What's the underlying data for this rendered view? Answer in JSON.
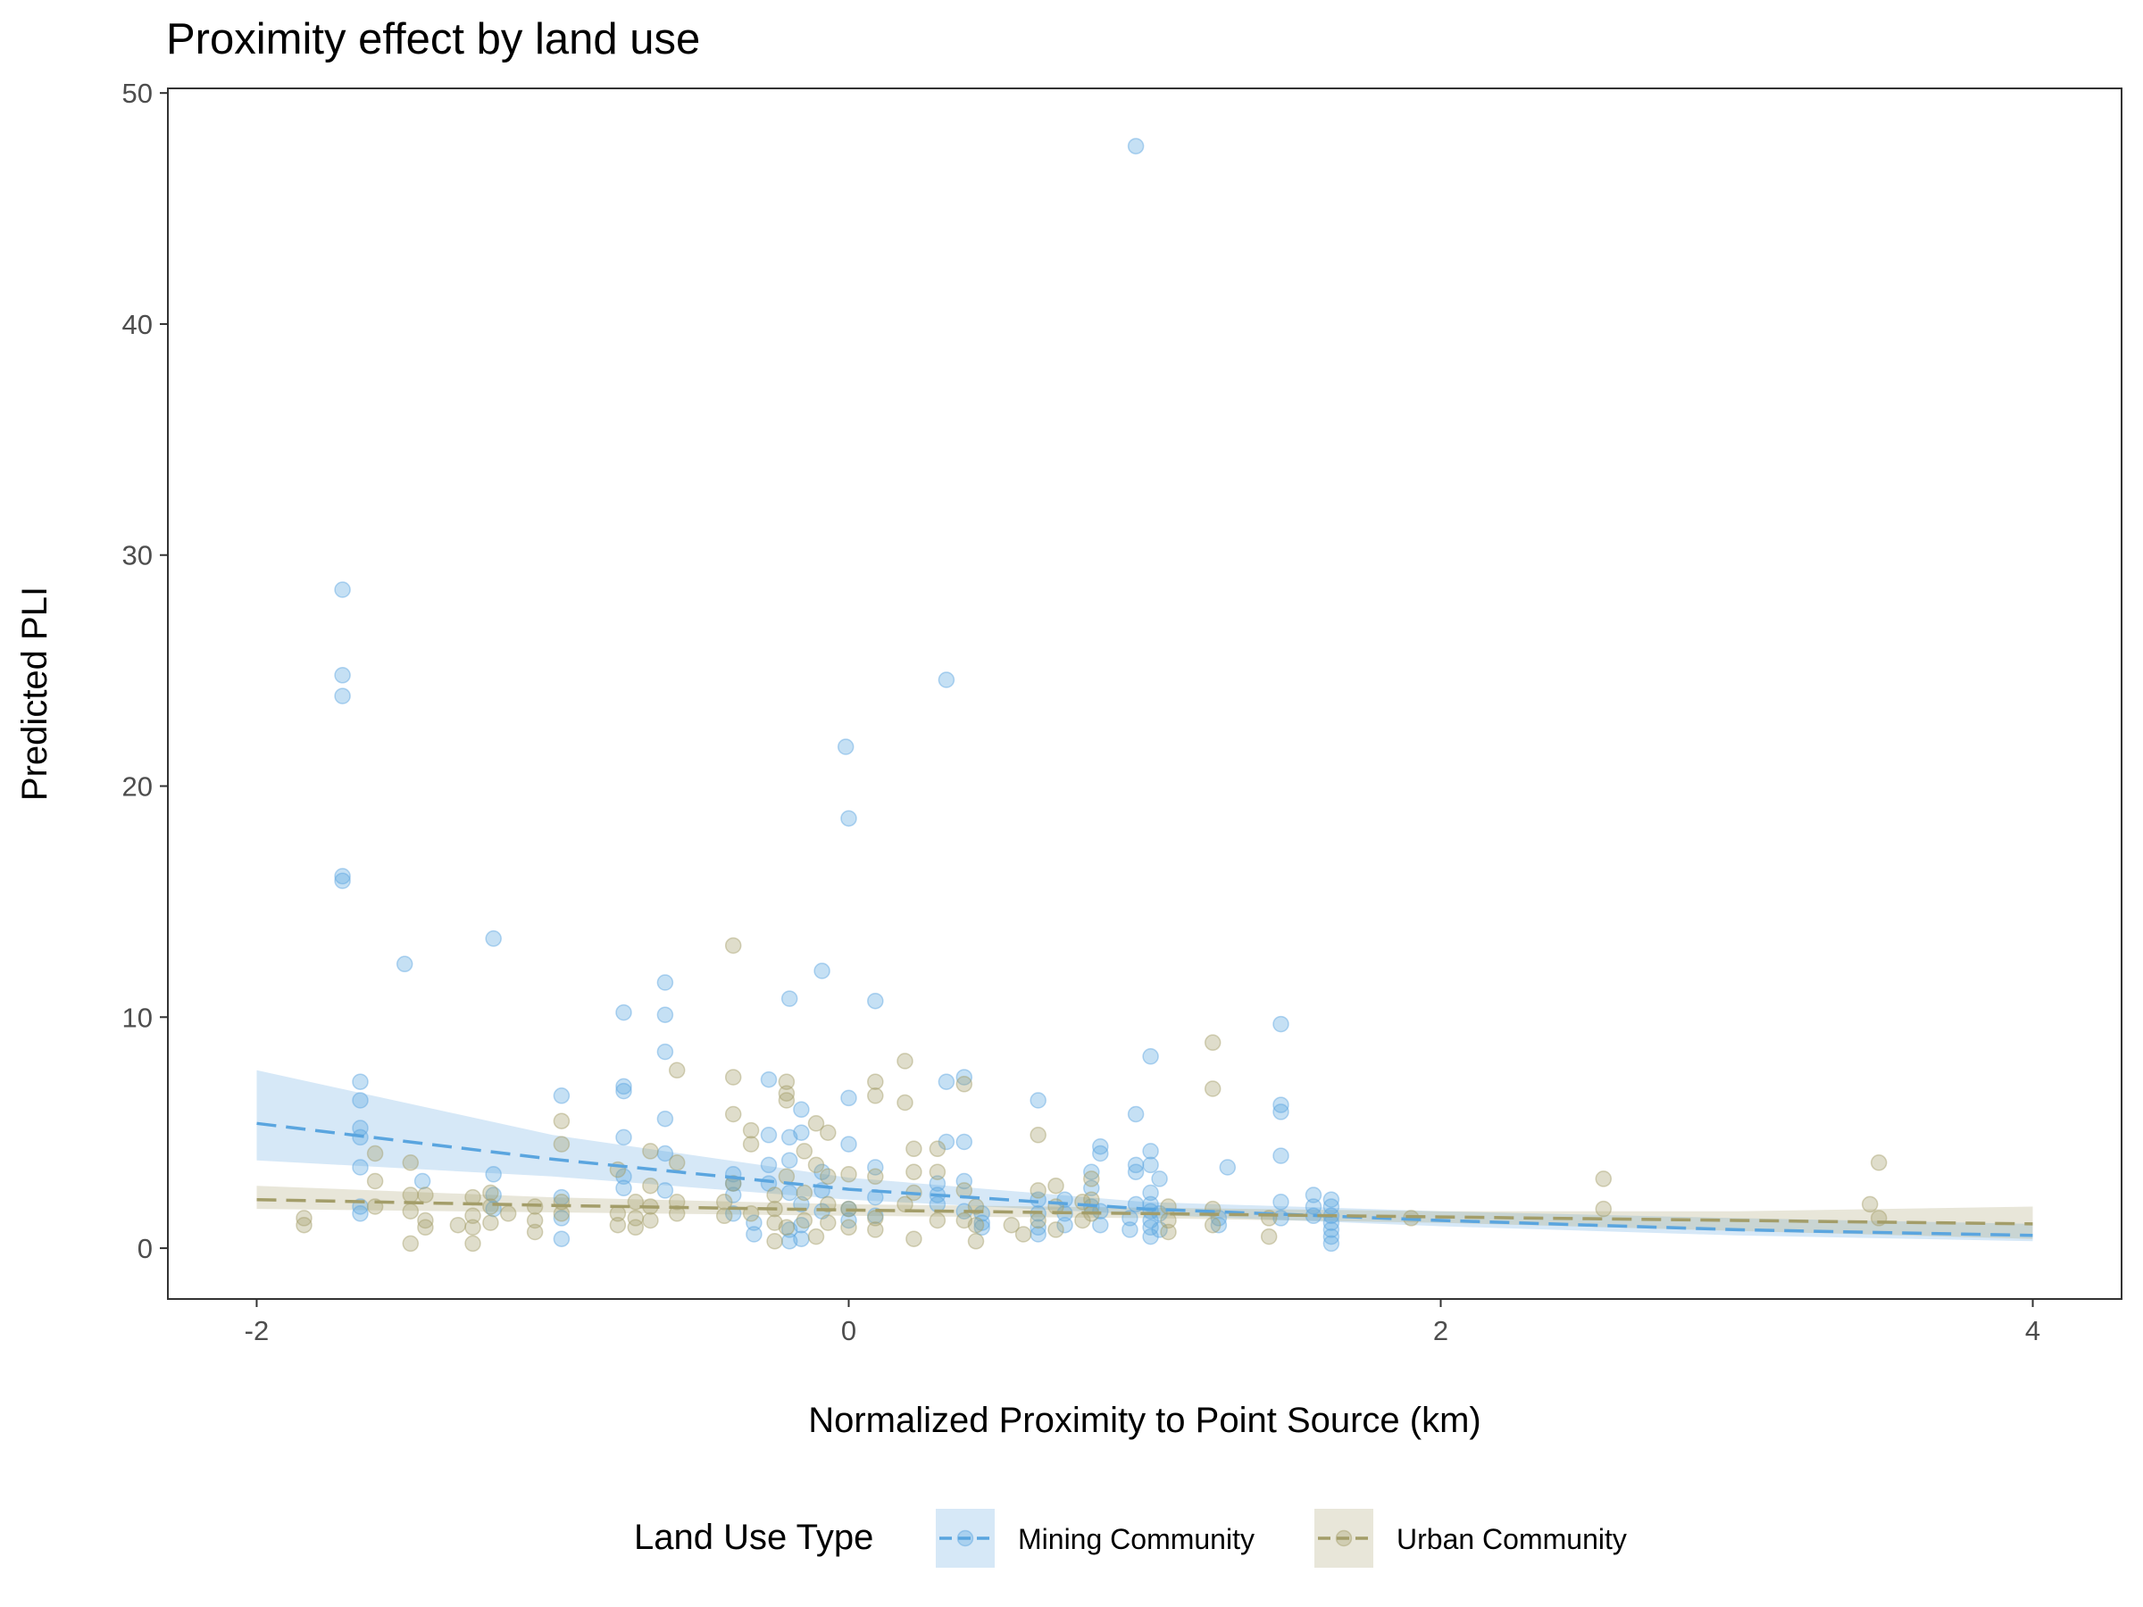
{
  "chart_data": {
    "type": "scatter",
    "title": "Proximity effect by land use",
    "xlabel": "Normalized Proximity to Point Source (km)",
    "ylabel": "Predicted PLI",
    "xlim": [
      -2.3,
      4.3
    ],
    "ylim": [
      -2.2,
      50.2
    ],
    "x_ticks": [
      -2,
      0,
      2,
      4
    ],
    "x_tick_labels": [
      "-2",
      "0",
      "2",
      "4"
    ],
    "y_ticks": [
      0,
      10,
      20,
      30,
      40,
      50
    ],
    "y_tick_labels": [
      "0",
      "10",
      "20",
      "30",
      "40",
      "50"
    ],
    "grid": false,
    "legend": {
      "title": "Land Use Type",
      "position": "bottom"
    },
    "series": [
      {
        "name": "Mining Community",
        "color": "#5aa5df",
        "points": [
          [
            -1.71,
            28.5
          ],
          [
            -1.71,
            24.8
          ],
          [
            -1.71,
            23.9
          ],
          [
            -1.71,
            16.1
          ],
          [
            -1.71,
            15.9
          ],
          [
            -1.65,
            7.2
          ],
          [
            -1.65,
            6.4
          ],
          [
            -1.65,
            5.2
          ],
          [
            -1.65,
            4.8
          ],
          [
            -1.65,
            3.5
          ],
          [
            -1.65,
            1.8
          ],
          [
            -1.65,
            1.5
          ],
          [
            -1.5,
            12.3
          ],
          [
            -1.44,
            2.9
          ],
          [
            -1.2,
            13.4
          ],
          [
            -1.2,
            3.2
          ],
          [
            -1.2,
            2.3
          ],
          [
            -1.2,
            1.7
          ],
          [
            -0.97,
            6.6
          ],
          [
            -0.97,
            2.2
          ],
          [
            -0.97,
            1.3
          ],
          [
            -0.97,
            0.4
          ],
          [
            -0.76,
            10.2
          ],
          [
            -0.76,
            7.0
          ],
          [
            -0.76,
            6.8
          ],
          [
            -0.76,
            4.8
          ],
          [
            -0.76,
            3.1
          ],
          [
            -0.76,
            2.6
          ],
          [
            -0.62,
            11.5
          ],
          [
            -0.62,
            10.1
          ],
          [
            -0.62,
            8.5
          ],
          [
            -0.62,
            5.6
          ],
          [
            -0.62,
            4.1
          ],
          [
            -0.62,
            2.5
          ],
          [
            -0.39,
            3.2
          ],
          [
            -0.39,
            2.8
          ],
          [
            -0.39,
            2.3
          ],
          [
            -0.39,
            1.5
          ],
          [
            -0.32,
            1.1
          ],
          [
            -0.32,
            0.6
          ],
          [
            -0.27,
            7.3
          ],
          [
            -0.27,
            4.9
          ],
          [
            -0.27,
            3.6
          ],
          [
            -0.27,
            2.8
          ],
          [
            -0.2,
            10.8
          ],
          [
            -0.2,
            4.8
          ],
          [
            -0.2,
            3.8
          ],
          [
            -0.2,
            2.4
          ],
          [
            -0.2,
            0.8
          ],
          [
            -0.2,
            0.3
          ],
          [
            -0.16,
            6.0
          ],
          [
            -0.16,
            5.0
          ],
          [
            -0.16,
            1.9
          ],
          [
            -0.16,
            1.0
          ],
          [
            -0.16,
            0.4
          ],
          [
            -0.09,
            12.0
          ],
          [
            -0.09,
            3.3
          ],
          [
            -0.09,
            2.5
          ],
          [
            -0.09,
            1.6
          ],
          [
            -0.01,
            21.7
          ],
          [
            0.0,
            18.6
          ],
          [
            0.0,
            6.5
          ],
          [
            0.0,
            4.5
          ],
          [
            0.0,
            1.7
          ],
          [
            0.0,
            1.2
          ],
          [
            0.09,
            10.7
          ],
          [
            0.09,
            3.5
          ],
          [
            0.09,
            2.2
          ],
          [
            0.09,
            1.4
          ],
          [
            0.3,
            2.8
          ],
          [
            0.3,
            2.3
          ],
          [
            0.3,
            1.9
          ],
          [
            0.33,
            24.6
          ],
          [
            0.33,
            7.2
          ],
          [
            0.33,
            4.6
          ],
          [
            0.39,
            7.4
          ],
          [
            0.39,
            4.6
          ],
          [
            0.39,
            2.9
          ],
          [
            0.39,
            1.6
          ],
          [
            0.45,
            1.5
          ],
          [
            0.45,
            1.1
          ],
          [
            0.45,
            0.9
          ],
          [
            0.64,
            6.4
          ],
          [
            0.64,
            2.1
          ],
          [
            0.64,
            1.5
          ],
          [
            0.64,
            0.9
          ],
          [
            0.64,
            0.6
          ],
          [
            0.73,
            2.1
          ],
          [
            0.73,
            1.5
          ],
          [
            0.73,
            1.0
          ],
          [
            0.82,
            3.3
          ],
          [
            0.82,
            2.6
          ],
          [
            0.82,
            1.8
          ],
          [
            0.85,
            4.4
          ],
          [
            0.85,
            4.1
          ],
          [
            0.85,
            1.6
          ],
          [
            0.85,
            1.0
          ],
          [
            0.95,
            1.3
          ],
          [
            0.95,
            0.8
          ],
          [
            0.97,
            47.7
          ],
          [
            0.97,
            5.8
          ],
          [
            0.97,
            3.6
          ],
          [
            0.97,
            3.3
          ],
          [
            0.97,
            1.9
          ],
          [
            1.02,
            8.3
          ],
          [
            1.02,
            4.2
          ],
          [
            1.02,
            3.6
          ],
          [
            1.02,
            2.4
          ],
          [
            1.02,
            1.9
          ],
          [
            1.02,
            1.6
          ],
          [
            1.02,
            1.2
          ],
          [
            1.02,
            0.9
          ],
          [
            1.02,
            0.5
          ],
          [
            1.05,
            3.0
          ],
          [
            1.05,
            1.5
          ],
          [
            1.05,
            0.8
          ],
          [
            1.25,
            1.3
          ],
          [
            1.25,
            1.0
          ],
          [
            1.28,
            3.5
          ],
          [
            1.46,
            9.7
          ],
          [
            1.46,
            6.2
          ],
          [
            1.46,
            5.9
          ],
          [
            1.46,
            4.0
          ],
          [
            1.46,
            2.0
          ],
          [
            1.46,
            1.3
          ],
          [
            1.57,
            2.3
          ],
          [
            1.57,
            1.8
          ],
          [
            1.57,
            1.4
          ],
          [
            1.63,
            2.1
          ],
          [
            1.63,
            1.8
          ],
          [
            1.63,
            1.4
          ],
          [
            1.63,
            1.1
          ],
          [
            1.63,
            0.8
          ],
          [
            1.63,
            0.5
          ],
          [
            1.63,
            0.2
          ]
        ],
        "trend": [
          [
            -2.0,
            5.4
          ],
          [
            -1.0,
            3.85
          ],
          [
            0.0,
            2.55
          ],
          [
            1.0,
            1.7
          ],
          [
            2.0,
            1.2
          ],
          [
            3.0,
            0.8
          ],
          [
            4.0,
            0.55
          ]
        ],
        "band": [
          [
            -2.0,
            3.8,
            7.7
          ],
          [
            -1.0,
            3.1,
            4.9
          ],
          [
            0.0,
            2.1,
            3.05
          ],
          [
            1.0,
            1.45,
            2.0
          ],
          [
            2.0,
            0.95,
            1.6
          ],
          [
            3.0,
            0.55,
            1.3
          ],
          [
            4.0,
            0.3,
            1.05
          ]
        ]
      },
      {
        "name": "Urban Community",
        "color": "#a39d69",
        "points": [
          [
            -1.84,
            1.3
          ],
          [
            -1.84,
            1.0
          ],
          [
            -1.6,
            4.1
          ],
          [
            -1.6,
            2.9
          ],
          [
            -1.6,
            1.8
          ],
          [
            -1.48,
            3.7
          ],
          [
            -1.48,
            2.3
          ],
          [
            -1.48,
            1.6
          ],
          [
            -1.48,
            0.2
          ],
          [
            -1.43,
            2.3
          ],
          [
            -1.43,
            1.2
          ],
          [
            -1.43,
            0.9
          ],
          [
            -1.32,
            1.0
          ],
          [
            -1.27,
            2.2
          ],
          [
            -1.27,
            1.4
          ],
          [
            -1.27,
            0.9
          ],
          [
            -1.27,
            0.2
          ],
          [
            -1.21,
            2.4
          ],
          [
            -1.21,
            1.8
          ],
          [
            -1.21,
            1.1
          ],
          [
            -1.15,
            1.5
          ],
          [
            -1.06,
            1.8
          ],
          [
            -1.06,
            1.2
          ],
          [
            -1.06,
            0.7
          ],
          [
            -0.97,
            5.5
          ],
          [
            -0.97,
            4.5
          ],
          [
            -0.97,
            2.0
          ],
          [
            -0.97,
            1.5
          ],
          [
            -0.78,
            3.4
          ],
          [
            -0.78,
            1.5
          ],
          [
            -0.78,
            1.0
          ],
          [
            -0.72,
            2.0
          ],
          [
            -0.72,
            1.3
          ],
          [
            -0.72,
            0.9
          ],
          [
            -0.67,
            4.2
          ],
          [
            -0.67,
            2.7
          ],
          [
            -0.67,
            1.8
          ],
          [
            -0.67,
            1.2
          ],
          [
            -0.58,
            3.7
          ],
          [
            -0.58,
            2.0
          ],
          [
            -0.58,
            1.5
          ],
          [
            -0.58,
            7.7
          ],
          [
            -0.42,
            2.0
          ],
          [
            -0.42,
            1.4
          ],
          [
            -0.39,
            13.1
          ],
          [
            -0.39,
            7.4
          ],
          [
            -0.39,
            5.8
          ],
          [
            -0.39,
            2.8
          ],
          [
            -0.33,
            5.1
          ],
          [
            -0.33,
            4.5
          ],
          [
            -0.33,
            1.5
          ],
          [
            -0.25,
            2.3
          ],
          [
            -0.25,
            1.7
          ],
          [
            -0.25,
            1.1
          ],
          [
            -0.25,
            0.3
          ],
          [
            -0.21,
            7.2
          ],
          [
            -0.21,
            6.7
          ],
          [
            -0.21,
            6.4
          ],
          [
            -0.21,
            3.1
          ],
          [
            -0.21,
            0.9
          ],
          [
            -0.15,
            4.2
          ],
          [
            -0.15,
            2.4
          ],
          [
            -0.15,
            1.2
          ],
          [
            -0.11,
            5.4
          ],
          [
            -0.11,
            3.6
          ],
          [
            -0.11,
            0.5
          ],
          [
            -0.07,
            5.0
          ],
          [
            -0.07,
            3.1
          ],
          [
            -0.07,
            1.9
          ],
          [
            -0.07,
            1.1
          ],
          [
            0.0,
            3.2
          ],
          [
            0.0,
            1.7
          ],
          [
            0.0,
            0.9
          ],
          [
            0.09,
            7.2
          ],
          [
            0.09,
            6.6
          ],
          [
            0.09,
            3.1
          ],
          [
            0.09,
            1.3
          ],
          [
            0.09,
            0.8
          ],
          [
            0.19,
            8.1
          ],
          [
            0.19,
            6.3
          ],
          [
            0.19,
            1.9
          ],
          [
            0.22,
            4.3
          ],
          [
            0.22,
            3.3
          ],
          [
            0.22,
            2.4
          ],
          [
            0.22,
            0.4
          ],
          [
            0.3,
            4.3
          ],
          [
            0.3,
            3.3
          ],
          [
            0.3,
            1.2
          ],
          [
            0.39,
            7.1
          ],
          [
            0.39,
            2.5
          ],
          [
            0.39,
            1.2
          ],
          [
            0.43,
            1.8
          ],
          [
            0.43,
            1.0
          ],
          [
            0.43,
            0.3
          ],
          [
            0.55,
            1.0
          ],
          [
            0.59,
            0.6
          ],
          [
            0.64,
            4.9
          ],
          [
            0.64,
            2.5
          ],
          [
            0.64,
            1.2
          ],
          [
            0.7,
            2.7
          ],
          [
            0.7,
            1.8
          ],
          [
            0.7,
            0.8
          ],
          [
            0.79,
            2.0
          ],
          [
            0.79,
            1.2
          ],
          [
            0.82,
            3.0
          ],
          [
            0.82,
            2.1
          ],
          [
            0.82,
            1.5
          ],
          [
            1.08,
            1.8
          ],
          [
            1.08,
            1.2
          ],
          [
            1.08,
            0.7
          ],
          [
            1.23,
            8.9
          ],
          [
            1.23,
            6.9
          ],
          [
            1.23,
            1.7
          ],
          [
            1.23,
            1.0
          ],
          [
            1.42,
            1.3
          ],
          [
            1.42,
            0.5
          ],
          [
            1.9,
            1.3
          ],
          [
            2.55,
            3.0
          ],
          [
            2.55,
            1.7
          ],
          [
            3.45,
            1.9
          ],
          [
            3.48,
            3.7
          ],
          [
            3.48,
            1.3
          ]
        ],
        "trend": [
          [
            -2.0,
            2.1
          ],
          [
            -1.0,
            1.85
          ],
          [
            0.0,
            1.65
          ],
          [
            1.0,
            1.5
          ],
          [
            2.0,
            1.35
          ],
          [
            3.0,
            1.2
          ],
          [
            4.0,
            1.05
          ]
        ],
        "band": [
          [
            -2.0,
            1.7,
            2.7
          ],
          [
            -1.0,
            1.55,
            2.2
          ],
          [
            0.0,
            1.4,
            1.9
          ],
          [
            1.0,
            1.3,
            1.75
          ],
          [
            2.0,
            1.1,
            1.6
          ],
          [
            3.0,
            0.75,
            1.6
          ],
          [
            4.0,
            0.4,
            1.8
          ]
        ]
      }
    ]
  }
}
